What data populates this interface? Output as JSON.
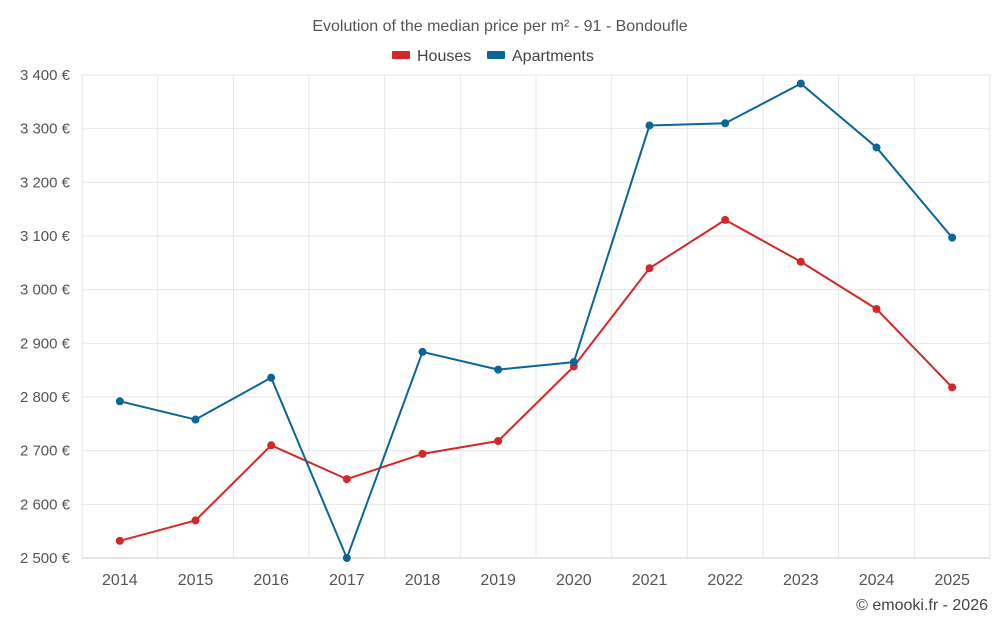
{
  "chart_data": {
    "type": "line",
    "title": "Evolution of the median price per m² - 91 - Bondoufle",
    "categories": [
      "2014",
      "2015",
      "2016",
      "2017",
      "2018",
      "2019",
      "2020",
      "2021",
      "2022",
      "2023",
      "2024",
      "2025"
    ],
    "series": [
      {
        "name": "Houses",
        "color": "#d62728",
        "values": [
          2532,
          2570,
          2710,
          2647,
          2694,
          2718,
          2857,
          3040,
          3130,
          3052,
          2964,
          2818
        ]
      },
      {
        "name": "Apartments",
        "color": "#0a6598",
        "values": [
          2792,
          2758,
          2836,
          2500,
          2884,
          2851,
          2865,
          3306,
          3310,
          3384,
          3265,
          3097
        ]
      }
    ],
    "ylim": [
      2500,
      3400
    ],
    "yticks": [
      2500,
      2600,
      2700,
      2800,
      2900,
      3000,
      3100,
      3200,
      3300,
      3400
    ],
    "ytick_labels": [
      "2 500 €",
      "2 600 €",
      "2 700 €",
      "2 800 €",
      "2 900 €",
      "3 000 €",
      "3 100 €",
      "3 200 €",
      "3 300 €",
      "3 400 €"
    ],
    "grid": true,
    "legend_position": "top-center",
    "xlabel": "",
    "ylabel": ""
  },
  "credit": "© emooki.fr - 2026"
}
